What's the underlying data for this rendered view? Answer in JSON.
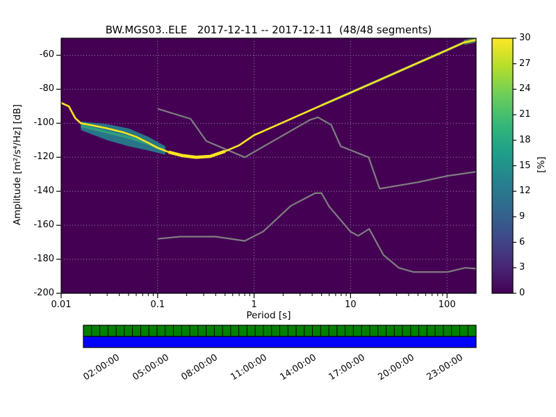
{
  "chart_data": {
    "type": "heatmap",
    "title": "BW.MGS03..ELE   2017-12-11 -- 2017-12-11  (48/48 segments)",
    "xlabel": "Period [s]",
    "ylabel": "Amplitude [m²/s⁴/Hz] [dB]",
    "xscale": "log",
    "xlim": [
      0.01,
      200
    ],
    "ylim": [
      -200,
      -50
    ],
    "x_ticks": [
      0.01,
      0.1,
      1,
      10,
      100
    ],
    "x_tick_labels": [
      "0.01",
      "0.1",
      "1",
      "10",
      "100"
    ],
    "y_ticks": [
      -60,
      -80,
      -100,
      -120,
      -140,
      -160,
      -180,
      -200
    ],
    "grid": true,
    "background_color": "#440154",
    "colorbar": {
      "label": "[%]",
      "min": 0,
      "max": 30,
      "ticks": [
        0,
        3,
        6,
        9,
        12,
        15,
        18,
        21,
        24,
        27,
        30
      ],
      "colormap": "viridis"
    },
    "series": [
      {
        "name": "psd-mode",
        "type": "line",
        "color": "#f8e621",
        "points": [
          [
            0.01,
            -88
          ],
          [
            0.012,
            -90
          ],
          [
            0.014,
            -97
          ],
          [
            0.016,
            -100
          ],
          [
            0.02,
            -101
          ],
          [
            0.03,
            -103
          ],
          [
            0.045,
            -105.5
          ],
          [
            0.06,
            -108
          ],
          [
            0.08,
            -111.5
          ],
          [
            0.1,
            -114.5
          ],
          [
            0.13,
            -117
          ],
          [
            0.18,
            -119
          ],
          [
            0.25,
            -120
          ],
          [
            0.35,
            -119.5
          ],
          [
            0.5,
            -116.5
          ],
          [
            0.7,
            -113
          ],
          [
            1,
            -107
          ],
          [
            2,
            -99.5
          ],
          [
            5,
            -89.5
          ],
          [
            10,
            -82
          ],
          [
            20,
            -74.5
          ],
          [
            50,
            -64.5
          ],
          [
            100,
            -57
          ],
          [
            150,
            -52.5
          ],
          [
            200,
            -51
          ]
        ]
      },
      {
        "name": "high-noise-model",
        "type": "line",
        "color": "#7f7f7f",
        "points": [
          [
            0.1,
            -91.5
          ],
          [
            0.22,
            -97.4
          ],
          [
            0.32,
            -110.5
          ],
          [
            0.8,
            -120
          ],
          [
            3.8,
            -98
          ],
          [
            4.6,
            -96.5
          ],
          [
            6.3,
            -101
          ],
          [
            7.9,
            -113.5
          ],
          [
            15.4,
            -120
          ],
          [
            20,
            -138.5
          ],
          [
            50,
            -134.7
          ],
          [
            100,
            -131
          ],
          [
            200,
            -128.5
          ]
        ]
      },
      {
        "name": "low-noise-model",
        "type": "line",
        "color": "#7f7f7f",
        "points": [
          [
            0.1,
            -168
          ],
          [
            0.17,
            -166.7
          ],
          [
            0.4,
            -166.7
          ],
          [
            0.8,
            -169.2
          ],
          [
            1.24,
            -163.7
          ],
          [
            2.4,
            -148.6
          ],
          [
            4.3,
            -141.1
          ],
          [
            5,
            -141.1
          ],
          [
            6,
            -149
          ],
          [
            10,
            -163.8
          ],
          [
            12,
            -166.2
          ],
          [
            15.6,
            -162.1
          ],
          [
            21.9,
            -177.5
          ],
          [
            31.6,
            -185
          ],
          [
            45,
            -187.5
          ],
          [
            101,
            -187.5
          ],
          [
            154,
            -185
          ],
          [
            200,
            -185.5
          ]
        ]
      }
    ],
    "distribution_spread": {
      "upper": [
        [
          0.016,
          -99
        ],
        [
          0.03,
          -100.5
        ],
        [
          0.05,
          -103
        ],
        [
          0.08,
          -108
        ],
        [
          0.12,
          -113.5
        ]
      ],
      "lower": [
        [
          0.016,
          -104
        ],
        [
          0.03,
          -110
        ],
        [
          0.05,
          -113.5
        ],
        [
          0.08,
          -116
        ],
        [
          0.12,
          -118.5
        ]
      ]
    }
  },
  "coverage": {
    "bar_color_top": "#008000",
    "bar_color_bottom": "#0000ff",
    "segments": 48,
    "tick_hours": [
      2,
      5,
      8,
      11,
      14,
      17,
      20,
      23
    ],
    "labels": [
      "02:00:00",
      "05:00:00",
      "08:00:00",
      "11:00:00",
      "14:00:00",
      "17:00:00",
      "20:00:00",
      "23:00:00"
    ]
  },
  "colors": {
    "viridis_stops": [
      [
        0,
        "#440154"
      ],
      [
        0.11,
        "#482878"
      ],
      [
        0.22,
        "#3e4a89"
      ],
      [
        0.33,
        "#31688e"
      ],
      [
        0.44,
        "#26828e"
      ],
      [
        0.55,
        "#1f9e89"
      ],
      [
        0.66,
        "#35b779"
      ],
      [
        0.78,
        "#6ece58"
      ],
      [
        0.89,
        "#b5de2b"
      ],
      [
        1,
        "#fde725"
      ]
    ],
    "grid_color": "#b8aec0",
    "noise_model_color": "#7f7f7f",
    "spread_fill": "#26828e",
    "spread_inner": "#35b779",
    "diagonal_halo": "#35b779",
    "end_blob": "#6ece58",
    "frame_color": "#000000"
  }
}
